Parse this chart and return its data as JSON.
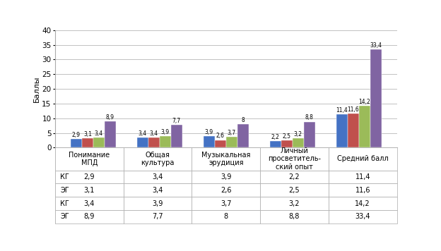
{
  "categories": [
    "Понимание\nМПД",
    "Общая\nкультура",
    "Музыкальная\nэрудиция",
    "Личный\nпросветитель-\nский опыт",
    "Средний балл"
  ],
  "series": [
    {
      "label": "КГ",
      "color": "#4472C4",
      "values": [
        2.9,
        3.4,
        3.9,
        2.2,
        11.4
      ]
    },
    {
      "label": "ЭГ",
      "color": "#C0504D",
      "values": [
        3.1,
        3.4,
        2.6,
        2.5,
        11.6
      ]
    },
    {
      "label": "КГ",
      "color": "#9BBB59",
      "values": [
        3.4,
        3.9,
        3.7,
        3.2,
        14.2
      ]
    },
    {
      "label": "ЭГ",
      "color": "#8064A2",
      "values": [
        8.9,
        7.7,
        8.0,
        8.8,
        33.4
      ]
    }
  ],
  "ylabel": "Баллы",
  "ylim": [
    0,
    40
  ],
  "yticks": [
    0,
    5,
    10,
    15,
    20,
    25,
    30,
    35,
    40
  ],
  "bar_width": 0.17,
  "table_data": [
    [
      "2,9",
      "3,4",
      "3,9",
      "2,2",
      "11,4"
    ],
    [
      "3,1",
      "3,4",
      "2,6",
      "2,5",
      "11,6"
    ],
    [
      "3,4",
      "3,9",
      "3,7",
      "3,2",
      "14,2"
    ],
    [
      "8,9",
      "7,7",
      "8",
      "8,8",
      "33,4"
    ]
  ],
  "row_labels": [
    "КГ",
    "ЭГ",
    "КГ",
    "ЭГ"
  ]
}
